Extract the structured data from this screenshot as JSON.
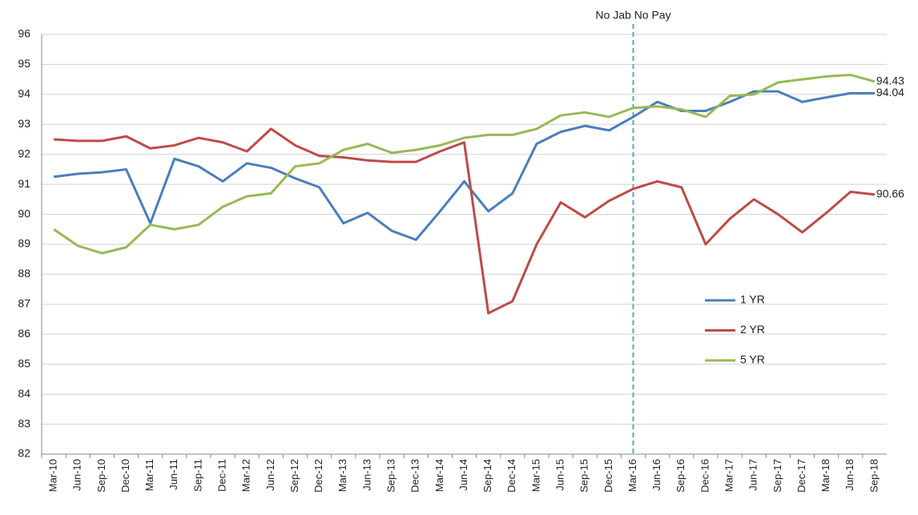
{
  "chart_data": {
    "type": "line",
    "annotation": {
      "text": "No Jab No Pay",
      "x": "Mar-16"
    },
    "categories": [
      "Mar-10",
      "Jun-10",
      "Sep-10",
      "Dec-10",
      "Mar-11",
      "Jun-11",
      "Sep-11",
      "Dec-11",
      "Mar-12",
      "Jun-12",
      "Sep-12",
      "Dec-12",
      "Mar-13",
      "Jun-13",
      "Sep-13",
      "Dec-13",
      "Mar-14",
      "Jun-14",
      "Sep-14",
      "Dec-14",
      "Mar-15",
      "Jun-15",
      "Sep-15",
      "Dec-15",
      "Mar-16",
      "Jun-16",
      "Sep-16",
      "Dec-16",
      "Mar-17",
      "Jun-17",
      "Sep-17",
      "Dec-17",
      "Mar-18",
      "Jun-18",
      "Sep-18"
    ],
    "series": [
      {
        "name": "1 YR",
        "color": "#4a7ebb",
        "values": [
          91.25,
          91.35,
          91.4,
          91.5,
          89.7,
          91.85,
          91.6,
          91.1,
          91.7,
          91.55,
          91.2,
          90.9,
          89.7,
          90.05,
          89.45,
          89.15,
          90.1,
          91.1,
          90.1,
          90.7,
          92.35,
          92.75,
          92.95,
          92.8,
          93.25,
          93.75,
          93.45,
          93.45,
          93.75,
          94.1,
          94.1,
          93.75,
          93.9,
          94.04,
          94.04
        ]
      },
      {
        "name": "2 YR",
        "color": "#be4b48",
        "values": [
          92.5,
          92.45,
          92.45,
          92.6,
          92.2,
          92.3,
          92.55,
          92.4,
          92.1,
          92.85,
          92.3,
          91.95,
          91.9,
          91.8,
          91.75,
          91.75,
          92.1,
          92.4,
          86.7,
          87.1,
          89.0,
          90.4,
          89.9,
          90.45,
          90.85,
          91.1,
          90.9,
          89.0,
          89.85,
          90.5,
          90.0,
          89.4,
          90.05,
          90.75,
          90.66
        ]
      },
      {
        "name": "5 YR",
        "color": "#98b954",
        "values": [
          89.5,
          88.95,
          88.7,
          88.9,
          89.65,
          89.5,
          89.65,
          90.25,
          90.6,
          90.7,
          91.6,
          91.7,
          92.15,
          92.35,
          92.05,
          92.15,
          92.3,
          92.55,
          92.65,
          92.65,
          92.85,
          93.3,
          93.4,
          93.25,
          93.55,
          93.6,
          93.5,
          93.25,
          93.95,
          94.0,
          94.4,
          94.5,
          94.6,
          94.65,
          94.43
        ]
      }
    ],
    "ylim": [
      82,
      96
    ],
    "yticks": [
      82,
      83,
      84,
      85,
      86,
      87,
      88,
      89,
      90,
      91,
      92,
      93,
      94,
      95,
      96
    ],
    "grid": true,
    "legend": "right"
  }
}
